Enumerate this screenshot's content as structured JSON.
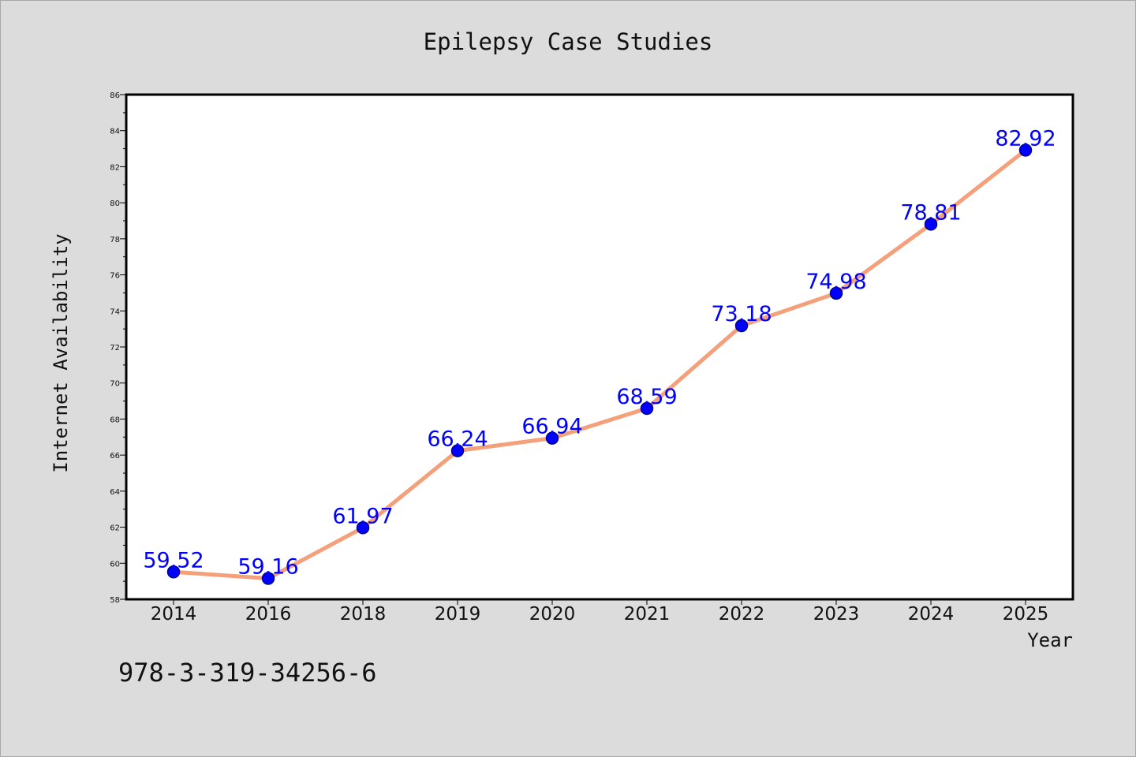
{
  "chart_data": {
    "type": "line",
    "title": "Epilepsy Case Studies",
    "xlabel": "Year",
    "ylabel": "Internet Availability",
    "categories": [
      "2014",
      "2016",
      "2018",
      "2019",
      "2020",
      "2021",
      "2022",
      "2023",
      "2024",
      "2025"
    ],
    "series": [
      {
        "values": [
          59.52,
          59.16,
          61.97,
          66.24,
          66.94,
          68.59,
          73.18,
          74.98,
          78.81,
          82.92
        ],
        "data_labels": [
          "59.52",
          "59.16",
          "61.97",
          "66.24",
          "66.94",
          "68.59",
          "73.18",
          "74.98",
          "78.81",
          "82.92"
        ]
      }
    ],
    "ylim": [
      58,
      86
    ],
    "yticks": [
      "58",
      "60",
      "62",
      "64",
      "66",
      "68",
      "70",
      "72",
      "74",
      "76",
      "78",
      "80",
      "82",
      "84",
      "86"
    ],
    "grid": false,
    "annotation": "978-3-319-34256-6",
    "colors": {
      "line": "#f4a07a",
      "marker": "#0000ff",
      "marker_edge": "#00008b",
      "data_label": "#0000ff",
      "background": "#dcdcdc",
      "plot_background": "#ffffff"
    }
  }
}
